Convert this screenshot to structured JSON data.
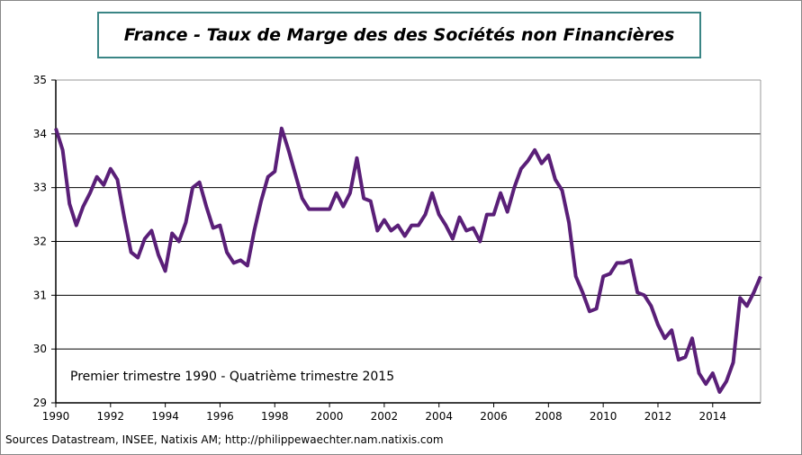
{
  "chart_data": {
    "type": "line",
    "title": "France - Taux de Marge des des Sociétés non Financières",
    "annotation": "Premier trimestre 1990 - Quatrième trimestre 2015",
    "source": "Sources Datastream, INSEE, Natixis AM;  http://philippewaechter.nam.natixis.com",
    "xlabel": "",
    "ylabel": "",
    "xlim": [
      1990,
      2016
    ],
    "ylim": [
      29,
      35
    ],
    "x_ticks": [
      "1990",
      "1992",
      "1994",
      "1996",
      "1998",
      "2000",
      "2002",
      "2004",
      "2006",
      "2008",
      "2010",
      "2012",
      "2014"
    ],
    "y_ticks": [
      "29",
      "30",
      "31",
      "32",
      "33",
      "34",
      "35"
    ],
    "grid": true,
    "line_color": "#5a1f78",
    "frequency": "quarterly",
    "x_start": "1990Q1",
    "values": [
      34.1,
      33.7,
      32.7,
      32.3,
      32.65,
      32.9,
      33.2,
      33.05,
      33.35,
      33.15,
      32.45,
      31.8,
      31.7,
      32.05,
      32.2,
      31.75,
      31.45,
      32.15,
      32.0,
      32.35,
      33.0,
      33.1,
      32.65,
      32.25,
      32.3,
      31.8,
      31.6,
      31.65,
      31.55,
      32.2,
      32.75,
      33.2,
      33.3,
      34.1,
      33.7,
      33.25,
      32.8,
      32.6,
      32.6,
      32.6,
      32.6,
      32.9,
      32.65,
      32.9,
      33.55,
      32.8,
      32.75,
      32.2,
      32.4,
      32.2,
      32.3,
      32.1,
      32.3,
      32.3,
      32.5,
      32.9,
      32.5,
      32.3,
      32.05,
      32.45,
      32.2,
      32.25,
      32.0,
      32.5,
      32.5,
      32.9,
      32.55,
      33.0,
      33.35,
      33.5,
      33.7,
      33.45,
      33.6,
      33.15,
      32.95,
      32.35,
      31.35,
      31.05,
      30.7,
      30.75,
      31.35,
      31.4,
      31.6,
      31.6,
      31.65,
      31.05,
      31.0,
      30.8,
      30.45,
      30.2,
      30.35,
      29.8,
      29.85,
      30.2,
      29.55,
      29.35,
      29.55,
      29.2,
      29.4,
      29.75,
      30.95,
      30.8,
      31.05,
      31.35
    ]
  }
}
